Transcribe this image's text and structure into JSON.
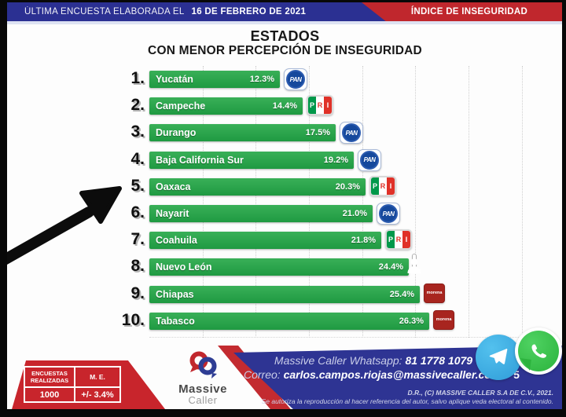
{
  "header": {
    "left_label": "ÚLTIMA ENCUESTA ELABORADA EL",
    "left_date": "16 DE FEBRERO DE 2021",
    "right_label": "ÍNDICE DE INSEGURIDAD"
  },
  "title": {
    "line1": "ESTADOS",
    "line2": "CON MENOR PERCEPCIÓN DE INSEGURIDAD"
  },
  "chart_data": {
    "type": "bar",
    "orientation": "horizontal",
    "title": "ESTADOS CON MENOR PERCEPCIÓN DE INSEGURIDAD",
    "unit": "%",
    "xlim": [
      0,
      27
    ],
    "gridlines": {
      "style": "dotted-vertical",
      "every_pct": 5
    },
    "bar_color": "#28a24a",
    "categories": [
      "Yucatán",
      "Campeche",
      "Durango",
      "Baja California Sur",
      "Oaxaca",
      "Nayarit",
      "Coahuila",
      "Nuevo León",
      "Chiapas",
      "Tabasco"
    ],
    "values": [
      12.3,
      14.4,
      17.5,
      19.2,
      20.3,
      21.0,
      21.8,
      24.4,
      25.4,
      26.3
    ],
    "rows": [
      {
        "rank": "1.",
        "state": "Yucatán",
        "value": 12.3,
        "label": "12.3%",
        "party": "PAN"
      },
      {
        "rank": "2.",
        "state": "Campeche",
        "value": 14.4,
        "label": "14.4%",
        "party": "PRI"
      },
      {
        "rank": "3.",
        "state": "Durango",
        "value": 17.5,
        "label": "17.5%",
        "party": "PAN"
      },
      {
        "rank": "4.",
        "state": "Baja California Sur",
        "value": 19.2,
        "label": "19.2%",
        "party": "PAN"
      },
      {
        "rank": "5.",
        "state": "Oaxaca",
        "value": 20.3,
        "label": "20.3%",
        "party": "PRI"
      },
      {
        "rank": "6.",
        "state": "Nayarit",
        "value": 21.0,
        "label": "21.0%",
        "party": "PAN"
      },
      {
        "rank": "7.",
        "state": "Coahuila",
        "value": 21.8,
        "label": "21.8%",
        "party": "PRI"
      },
      {
        "rank": "8.",
        "state": "Nuevo León",
        "value": 24.4,
        "label": "24.4%",
        "party": "INDEPENDIENTE"
      },
      {
        "rank": "9.",
        "state": "Chiapas",
        "value": 25.4,
        "label": "25.4%",
        "party": "MORENA"
      },
      {
        "rank": "10.",
        "state": "Tabasco",
        "value": 26.3,
        "label": "26.3%",
        "party": "MORENA"
      }
    ]
  },
  "party_logos": {
    "PAN": {
      "icon": "pan-logo-icon",
      "text": "PAN",
      "color": "#15489c"
    },
    "PRI": {
      "icon": "pri-logo-icon",
      "letters": [
        "P",
        "R",
        "I"
      ],
      "colors": [
        "#00984a",
        "#ffffff",
        "#e03128"
      ]
    },
    "MORENA": {
      "icon": "morena-logo-icon",
      "text": "morena",
      "color": "#a8251f"
    },
    "INDEPENDIENTE": {
      "icon": "independent-candidate-icon",
      "color": "#c6c6c6"
    }
  },
  "annotation": {
    "shape": "arrow",
    "points_to_rank": "5.",
    "points_to_state": "Oaxaca"
  },
  "footer": {
    "stats": {
      "col1_header": "ENCUESTAS REALIZADAS",
      "col2_header": "M. E.",
      "col1_value": "1000",
      "col2_value": "+/- 3.4%"
    },
    "logo": {
      "name": "Massive",
      "sub": "Caller"
    },
    "whatsapp_label": "Massive Caller Whatsapp:",
    "whatsapp_number": "81 1778 1079",
    "email_label": "Correo:",
    "email": "carlos.campos.riojas@massivecaller.com",
    "page_number": "5",
    "copyright_line1": "D.R., (C) MASSIVE CALLER S.A DE C.V., 2021.",
    "copyright_line2": "Se autoriza la reproducción al hacer referencia del autor, salvo aplique veda electoral al contenido."
  },
  "colors": {
    "header_blue": "#2b3092",
    "header_red": "#c0272d",
    "bar_green": "#28a24a",
    "footer_blue": "#2e3493",
    "footer_red": "#c8252c",
    "telegram_blue": "#35a9e0",
    "whatsapp_green": "#2db33e"
  }
}
